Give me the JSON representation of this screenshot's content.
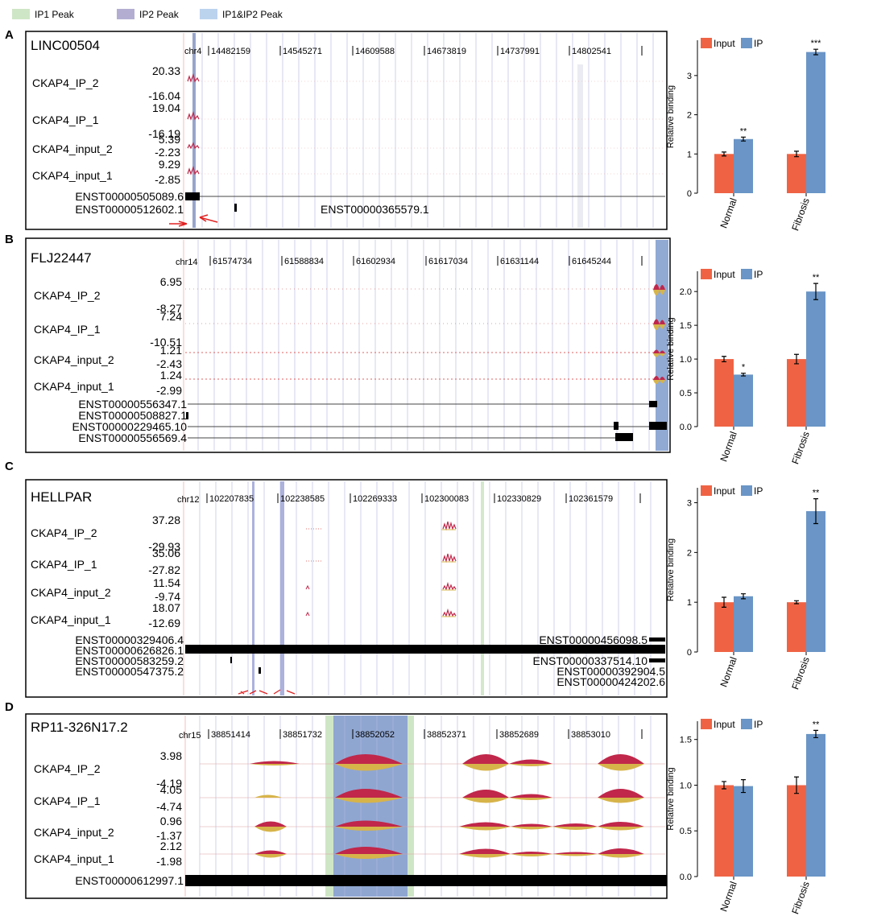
{
  "legend": [
    {
      "label": "IP1 Peak",
      "color": "#cfe6c6"
    },
    {
      "label": "IP2 Peak",
      "color": "#b3aed1"
    },
    {
      "label": "IP1&IP2 Peak",
      "color": "#bcd3ee"
    }
  ],
  "colors": {
    "input": "#ef6344",
    "ip": "#6a95c6",
    "cover_red": "#c0274a",
    "cover_yellow": "#d7b44a",
    "ip1": "#cfe6c6",
    "ip2": "#b3aed1",
    "both": "#9eb6da"
  },
  "tracks_common": [
    "CKAP4_IP_2",
    "CKAP4_IP_1",
    "CKAP4_input_2",
    "CKAP4_input_1"
  ],
  "panels": [
    {
      "letter": "A",
      "gene": "LINC00504",
      "chr": "chr4",
      "coords": [
        "14482159",
        "14545271",
        "14609588",
        "14673819",
        "14737991",
        "14802541"
      ],
      "ranges": [
        [
          "20.33",
          "-16.04"
        ],
        [
          "19.04",
          "-16.19"
        ],
        [
          "5.39",
          "-2.23"
        ],
        [
          "9.29",
          "-2.85"
        ]
      ],
      "transcripts": [
        "ENST00000505089.6",
        "ENST00000512602.1",
        "ENST00000365579.1"
      ]
    },
    {
      "letter": "B",
      "gene": "FLJ22447",
      "chr": "chr14",
      "coords": [
        "61574734",
        "61588834",
        "61602934",
        "61617034",
        "61631144",
        "61645244"
      ],
      "ranges": [
        [
          "6.95",
          "-8.27"
        ],
        [
          "7.24",
          "-10.51"
        ],
        [
          "1.21",
          "-2.43"
        ],
        [
          "1.24",
          "-2.99"
        ]
      ],
      "transcripts": [
        "ENST00000556347.1",
        "ENST00000508827.1",
        "ENST00000229465.10",
        "ENST00000556569.4"
      ]
    },
    {
      "letter": "C",
      "gene": "HELLPAR",
      "chr": "chr12",
      "coords": [
        "102207835",
        "102238585",
        "102269333",
        "102300083",
        "102330829",
        "102361579"
      ],
      "ranges": [
        [
          "37.28",
          "-29.93"
        ],
        [
          "35.06",
          "-27.82"
        ],
        [
          "11.54",
          "-9.74"
        ],
        [
          "18.07",
          "-12.69"
        ]
      ],
      "transcripts": [
        "ENST00000329406.4",
        "ENST00000626826.1",
        "ENST00000583259.2",
        "ENST00000547375.2",
        "ENST00000456098.5",
        "ENST00000337514.10",
        "ENST00000392904.5",
        "ENST00000424202.6"
      ]
    },
    {
      "letter": "D",
      "gene": "RP11-326N17.2",
      "chr": "chr15",
      "coords": [
        "38851414",
        "38851732",
        "38852052",
        "38852371",
        "38852689",
        "38853010"
      ],
      "ranges": [
        [
          "3.98",
          "-4.19"
        ],
        [
          "4.05",
          "-4.74"
        ],
        [
          "0.96",
          "-1.37"
        ],
        [
          "2.12",
          "-1.98"
        ]
      ],
      "transcripts": [
        "ENST00000612997.1"
      ]
    }
  ],
  "chart_data": [
    {
      "type": "bar",
      "panel": "A",
      "ylabel": "Relative binding",
      "categories": [
        "Normal",
        "Fibrosis"
      ],
      "series": [
        {
          "name": "Input",
          "values": [
            1.0,
            1.0
          ],
          "errors": [
            0.05,
            0.07
          ]
        },
        {
          "name": "IP",
          "values": [
            1.38,
            3.6
          ],
          "errors": [
            0.05,
            0.07
          ]
        }
      ],
      "significance": [
        "**",
        "***"
      ],
      "ylim": [
        0,
        3.9
      ],
      "yticks": [
        0,
        1,
        2,
        3
      ]
    },
    {
      "type": "bar",
      "panel": "B",
      "ylabel": "Relative binding",
      "categories": [
        "Normal",
        "Fibrosis"
      ],
      "series": [
        {
          "name": "Input",
          "values": [
            1.0,
            1.0
          ],
          "errors": [
            0.04,
            0.07
          ]
        },
        {
          "name": "IP",
          "values": [
            0.77,
            2.0
          ],
          "errors": [
            0.02,
            0.12
          ]
        }
      ],
      "significance": [
        "*",
        "**"
      ],
      "ylim": [
        0,
        2.3
      ],
      "yticks": [
        0.0,
        0.5,
        1.0,
        1.5,
        2.0
      ]
    },
    {
      "type": "bar",
      "panel": "C",
      "ylabel": "Relative binding",
      "categories": [
        "Normal",
        "Fibrosis"
      ],
      "series": [
        {
          "name": "Input",
          "values": [
            1.0,
            1.0
          ],
          "errors": [
            0.1,
            0.03
          ]
        },
        {
          "name": "IP",
          "values": [
            1.12,
            2.83
          ],
          "errors": [
            0.05,
            0.25
          ]
        }
      ],
      "significance": [
        "",
        "**"
      ],
      "ylim": [
        0,
        3.3
      ],
      "yticks": [
        0,
        1,
        2,
        3
      ]
    },
    {
      "type": "bar",
      "panel": "D",
      "ylabel": "Relative binding",
      "categories": [
        "Normal",
        "Fibrosis"
      ],
      "series": [
        {
          "name": "Input",
          "values": [
            1.0,
            1.0
          ],
          "errors": [
            0.04,
            0.09
          ]
        },
        {
          "name": "IP",
          "values": [
            0.99,
            1.56
          ],
          "errors": [
            0.07,
            0.04
          ]
        }
      ],
      "significance": [
        "",
        "**"
      ],
      "ylim": [
        0,
        1.7
      ],
      "yticks": [
        0.0,
        0.5,
        1.0,
        1.5
      ]
    }
  ]
}
